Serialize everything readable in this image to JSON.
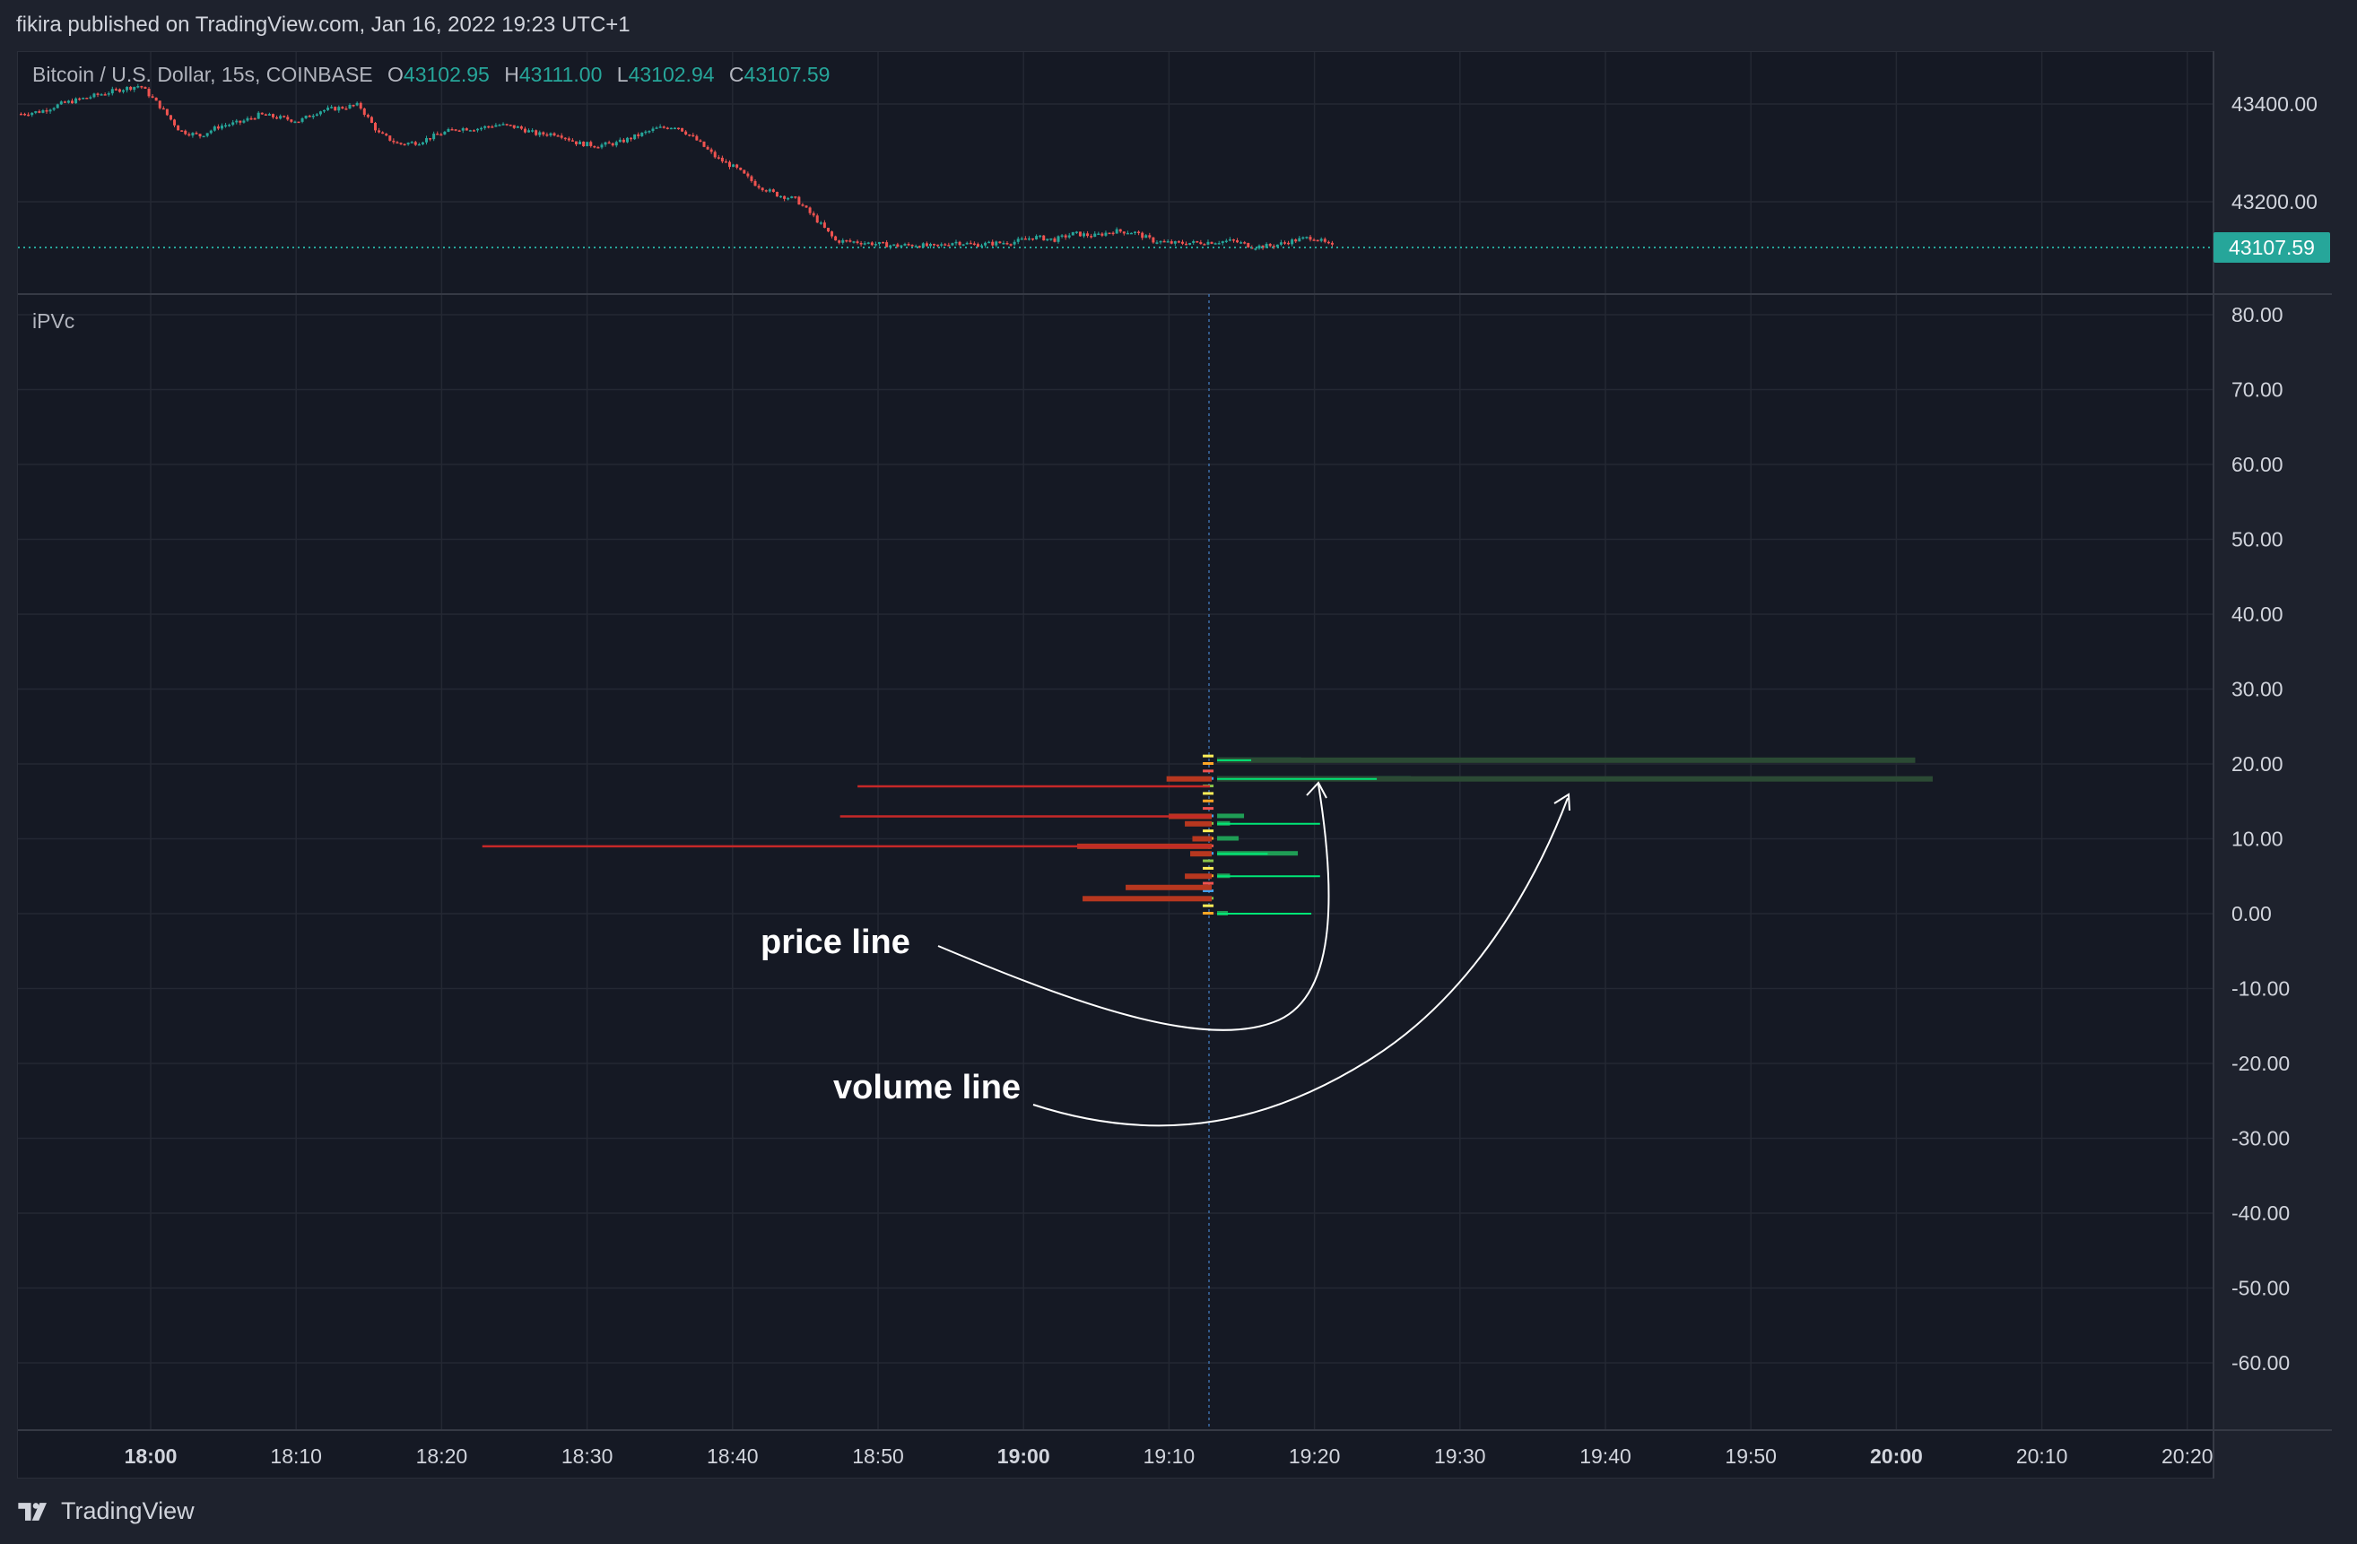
{
  "header": {
    "published_line": "fikira published on TradingView.com, Jan 16, 2022 19:23 UTC+1"
  },
  "symbol": {
    "name": "Bitcoin / U.S. Dollar, 15s, COINBASE",
    "open_label": "O",
    "open": "43102.95",
    "high_label": "H",
    "high": "43111.00",
    "low_label": "L",
    "low": "43102.94",
    "close_label": "C",
    "close": "43107.59"
  },
  "last_price": "43107.59",
  "price_axis": [
    "43400.00",
    "43200.00"
  ],
  "indicator": {
    "name": "iPVc",
    "axis": [
      "80.00",
      "70.00",
      "60.00",
      "50.00",
      "40.00",
      "30.00",
      "20.00",
      "10.00",
      "0.00",
      "-10.00",
      "-20.00",
      "-30.00",
      "-40.00",
      "-50.00",
      "-60.00"
    ]
  },
  "time_axis": [
    {
      "label": "18:00",
      "bold": true
    },
    {
      "label": "18:10",
      "bold": false
    },
    {
      "label": "18:20",
      "bold": false
    },
    {
      "label": "18:30",
      "bold": false
    },
    {
      "label": "18:40",
      "bold": false
    },
    {
      "label": "18:50",
      "bold": false
    },
    {
      "label": "19:00",
      "bold": true
    },
    {
      "label": "19:10",
      "bold": false
    },
    {
      "label": "19:20",
      "bold": false
    },
    {
      "label": "19:30",
      "bold": false
    },
    {
      "label": "19:40",
      "bold": false
    },
    {
      "label": "19:50",
      "bold": false
    },
    {
      "label": "20:00",
      "bold": true
    },
    {
      "label": "20:10",
      "bold": false
    },
    {
      "label": "20:20",
      "bold": false
    }
  ],
  "annotations": {
    "price_line": "price line",
    "volume_line": "volume line"
  },
  "footer": {
    "brand": "TradingView",
    "logo_icon": "tradingview-logo-icon"
  },
  "colors": {
    "up": "#26a69a",
    "down": "#ef5350",
    "grid": "#242833",
    "red_line": "#c62828",
    "green_line": "#00e676"
  },
  "chart_data": {
    "type": "table",
    "price_close_series": [
      43380,
      43385,
      43400,
      43410,
      43420,
      43430,
      43438,
      43395,
      43345,
      43335,
      43355,
      43362,
      43378,
      43372,
      43365,
      43386,
      43392,
      43398,
      43340,
      43318,
      43322,
      43338,
      43350,
      43350,
      43358,
      43352,
      43338,
      43340,
      43320,
      43315,
      43320,
      43335,
      43350,
      43355,
      43326,
      43290,
      43268,
      43235,
      43215,
      43205,
      43165,
      43120,
      43118,
      43114,
      43110,
      43112,
      43108,
      43118,
      43112,
      43115,
      43118,
      43128,
      43122,
      43135,
      43130,
      43140,
      43138,
      43120,
      43115,
      43116,
      43118,
      43120,
      43108,
      43110,
      43120,
      43128,
      43108
    ],
    "profile_rows": [
      {
        "level": 20.5,
        "red": 0,
        "green": 78
      },
      {
        "level": 18,
        "red": 42,
        "green": 180
      },
      {
        "level": 17,
        "red": 0,
        "green": 0
      },
      {
        "level": 13,
        "red": 40,
        "green": 25
      },
      {
        "level": 12,
        "red": 25,
        "green": 12
      },
      {
        "level": 10,
        "red": 18,
        "green": 20
      },
      {
        "level": 9,
        "red": 125,
        "green": 0
      },
      {
        "level": 8,
        "red": 20,
        "green": 75
      },
      {
        "level": 5,
        "red": 25,
        "green": 12
      },
      {
        "level": 3.5,
        "red": 80,
        "green": 0
      },
      {
        "level": 2,
        "red": 120,
        "green": 0
      },
      {
        "level": 0,
        "red": 0,
        "green": 10
      }
    ],
    "price_lines": [
      {
        "level": 17,
        "color": "red",
        "from_time": 18.81
      },
      {
        "level": 13,
        "color": "red",
        "from_time": 18.79
      },
      {
        "level": 9,
        "color": "red",
        "from_time": 18.38
      },
      {
        "level": 12,
        "color": "green",
        "to_time": 19.34
      },
      {
        "level": 8,
        "color": "green",
        "to_time": 19.28
      },
      {
        "level": 5,
        "color": "green",
        "to_time": 19.34
      },
      {
        "level": 0,
        "color": "green",
        "to_time": 19.33
      }
    ],
    "volume_lines": [
      {
        "level": 20.5,
        "color": "green",
        "to_time": 20.02
      },
      {
        "level": 18,
        "color": "green",
        "to_time": 20.04
      }
    ],
    "current_time": 19.22
  }
}
